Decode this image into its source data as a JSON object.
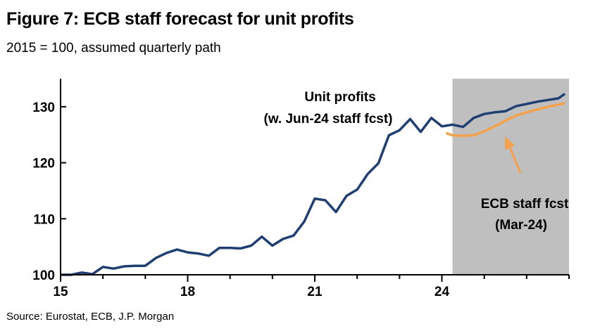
{
  "header": {
    "title": "Figure 7: ECB staff forecast for unit profits",
    "subtitle": "2015 = 100, assumed quarterly path"
  },
  "footer": {
    "source": "Source: Eurostat, ECB, J.P. Morgan"
  },
  "chart_data": {
    "type": "line",
    "xlim": [
      2015,
      2027
    ],
    "ylim": [
      100,
      135
    ],
    "x_ticks": [
      15,
      18,
      21,
      24
    ],
    "y_ticks": [
      100,
      110,
      120,
      130
    ],
    "grid": false,
    "shaded_region": {
      "x_start": 2024.25,
      "x_end": 2027,
      "color": "#bfbfbf"
    },
    "series": [
      {
        "name": "Unit profits (w. Jun-24 staff fcst)",
        "color": "#1f3f73",
        "x": [
          2015,
          2015.25,
          2015.5,
          2015.75,
          2016,
          2016.25,
          2016.5,
          2016.75,
          2017,
          2017.25,
          2017.5,
          2017.75,
          2018,
          2018.25,
          2018.5,
          2018.75,
          2019,
          2019.25,
          2019.5,
          2019.75,
          2020,
          2020.25,
          2020.5,
          2020.75,
          2021,
          2021.25,
          2021.5,
          2021.75,
          2022,
          2022.25,
          2022.5,
          2022.75,
          2023,
          2023.25,
          2023.5,
          2023.75,
          2024,
          2024.25,
          2024.5,
          2024.75,
          2025,
          2025.25,
          2025.5,
          2025.75,
          2026,
          2026.25,
          2026.5,
          2026.75,
          2026.9
        ],
        "values": [
          100.0,
          100.0,
          100.4,
          100.1,
          101.4,
          101.1,
          101.5,
          101.6,
          101.6,
          103.0,
          103.9,
          104.5,
          104.0,
          103.8,
          103.4,
          104.8,
          104.8,
          104.7,
          105.2,
          106.8,
          105.2,
          106.4,
          107.0,
          109.5,
          113.6,
          113.3,
          111.2,
          114.1,
          115.2,
          118.0,
          119.9,
          124.9,
          125.8,
          127.8,
          125.5,
          128.0,
          126.5,
          126.8,
          126.4,
          128.0,
          128.7,
          129.0,
          129.2,
          130.1,
          130.5,
          130.9,
          131.2,
          131.5,
          132.3
        ]
      },
      {
        "name": "ECB staff fcst (Mar-24)",
        "color": "#f5a04b",
        "x": [
          2024.1,
          2024.25,
          2024.5,
          2024.75,
          2025,
          2025.25,
          2025.5,
          2025.75,
          2026,
          2026.25,
          2026.5,
          2026.75,
          2026.9
        ],
        "values": [
          125.3,
          124.9,
          124.8,
          124.9,
          125.6,
          126.5,
          127.5,
          128.4,
          129.0,
          129.5,
          130.0,
          130.4,
          130.6
        ]
      }
    ],
    "annotations": {
      "unit_profits_line1": "Unit profits",
      "unit_profits_line2": "(w. Jun-24 staff fcst)",
      "ecb_line1": "ECB staff fcst",
      "ecb_line2": "(Mar-24)"
    }
  }
}
